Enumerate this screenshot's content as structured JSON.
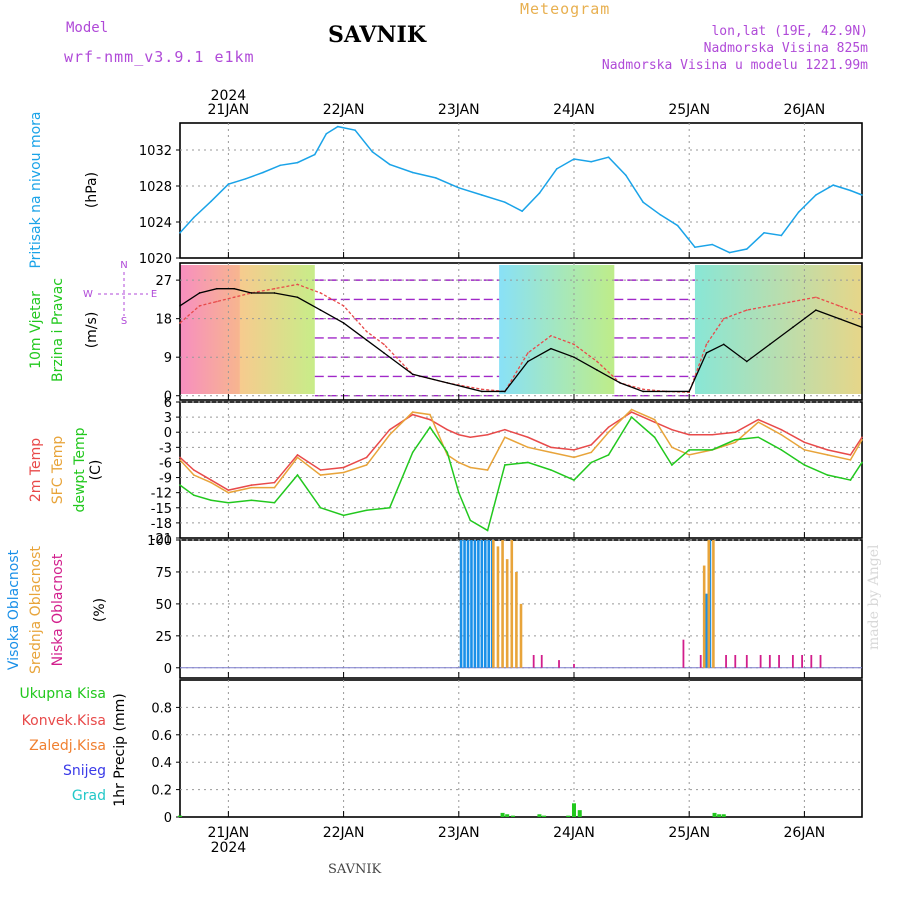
{
  "header": {
    "model_label": "Model",
    "model_name": "wrf-nmm_v3.9.1  e1km",
    "station": "SAVNIK",
    "chart_kind": "Meteogram",
    "coords": "lon,lat (19E, 42.9N)",
    "elevation": "Nadmorska Visina 825m",
    "model_elevation": "Nadmorska Visina u modelu 1221.99m"
  },
  "credit": "made by Angel",
  "footer": "SAVNIK",
  "time_axis": {
    "year": "2024",
    "days": [
      "21JAN",
      "22JAN",
      "23JAN",
      "24JAN",
      "25JAN",
      "26JAN"
    ],
    "start_day": 20.58,
    "end_day": 26.5
  },
  "colors": {
    "pressure": "#1aa3e8",
    "temp2m": "#e84a4a",
    "sfc": "#e8a43a",
    "dew": "#22c81e",
    "wind_label": "#22c81e",
    "high_cloud": "#1a90e8",
    "mid_cloud": "#e8a43a",
    "low_cloud": "#d21e8c",
    "precip_total": "#22c81e",
    "precip_conv": "#e84a4a",
    "precip_frozen": "#f08030",
    "snow": "#3a3ae8",
    "graupel": "#22c8c8",
    "vane_label": "#b04ad8"
  },
  "chart_data": [
    {
      "type": "line",
      "name": "pressure",
      "ylabels": [
        "Pritisak na nivou mora",
        "(hPa)"
      ],
      "ylim": [
        1020,
        1035
      ],
      "yticks": [
        1020,
        1024,
        1028,
        1032
      ],
      "grid": true,
      "x": [
        20.58,
        20.7,
        20.85,
        21.0,
        21.15,
        21.3,
        21.45,
        21.6,
        21.75,
        21.85,
        21.95,
        22.1,
        22.25,
        22.4,
        22.6,
        22.8,
        23.0,
        23.2,
        23.4,
        23.55,
        23.7,
        23.85,
        24.0,
        24.15,
        24.3,
        24.45,
        24.6,
        24.75,
        24.9,
        25.05,
        25.2,
        25.35,
        25.5,
        25.65,
        25.8,
        25.95,
        26.1,
        26.25,
        26.4,
        26.5
      ],
      "series": [
        {
          "values": [
            1022.8,
            1024.5,
            1026.3,
            1028.2,
            1028.8,
            1029.5,
            1030.3,
            1030.6,
            1031.5,
            1033.8,
            1034.6,
            1034.2,
            1031.8,
            1030.4,
            1029.5,
            1028.9,
            1027.8,
            1027.0,
            1026.2,
            1025.2,
            1027.2,
            1029.9,
            1031.0,
            1030.7,
            1031.2,
            1029.2,
            1026.2,
            1024.8,
            1023.6,
            1021.2,
            1021.5,
            1020.6,
            1021.0,
            1022.8,
            1022.5,
            1025.1,
            1027.0,
            1028.1,
            1027.5,
            1027.0
          ]
        }
      ]
    },
    {
      "type": "line",
      "name": "wind",
      "ylabels": [
        "10m Vjetar",
        "Brzina i Pravac",
        "(m/s)"
      ],
      "ylim": [
        -1,
        31
      ],
      "yticks": [
        0,
        9,
        18,
        27
      ],
      "grid": true,
      "vane": [
        "N",
        "E",
        "W",
        "S"
      ],
      "x": [
        20.58,
        20.75,
        20.9,
        21.05,
        21.2,
        21.4,
        21.6,
        21.8,
        22.0,
        22.2,
        22.35,
        22.6,
        22.9,
        23.2,
        23.4,
        23.6,
        23.8,
        24.0,
        24.2,
        24.4,
        24.6,
        24.8,
        25.0,
        25.15,
        25.3,
        25.5,
        25.7,
        25.9,
        26.1,
        26.3,
        26.5
      ],
      "series": [
        {
          "values": [
            17,
            21,
            22,
            23,
            24,
            25,
            26,
            24,
            21,
            15,
            12,
            5,
            3,
            1.5,
            1.0,
            10,
            14,
            12,
            8,
            3,
            1.5,
            1.0,
            0.8,
            12,
            18,
            20,
            21,
            22,
            23,
            21,
            19
          ]
        },
        {
          "values": [
            21,
            24,
            25,
            25,
            24,
            24,
            23,
            20,
            17,
            13,
            10,
            5,
            3,
            1,
            1,
            8,
            11,
            9,
            6,
            3,
            1,
            1,
            1,
            10,
            12,
            8,
            12,
            16,
            20,
            18,
            16
          ]
        }
      ],
      "wind_bands": [
        [
          20.58,
          21.1
        ],
        [
          21.1,
          21.75
        ],
        [
          23.35,
          24.35
        ],
        [
          25.05,
          26.5
        ]
      ]
    },
    {
      "type": "line",
      "name": "temperature",
      "ylabels": [
        "2m Temp",
        "SFC Temp",
        "dewpt Temp",
        "(C)"
      ],
      "ylim": [
        -21,
        6
      ],
      "yticks": [
        -21,
        -18,
        -15,
        -12,
        -9,
        -6,
        -3,
        0,
        3,
        6
      ],
      "grid": true,
      "x": [
        20.58,
        20.7,
        20.85,
        21.0,
        21.2,
        21.4,
        21.6,
        21.8,
        22.0,
        22.2,
        22.4,
        22.6,
        22.75,
        22.9,
        23.0,
        23.1,
        23.25,
        23.4,
        23.6,
        23.8,
        24.0,
        24.15,
        24.3,
        24.5,
        24.7,
        24.85,
        25.0,
        25.2,
        25.4,
        25.6,
        25.8,
        26.0,
        26.2,
        26.4,
        26.5
      ],
      "series": [
        {
          "values": [
            -5.0,
            -7.5,
            -9.5,
            -11.5,
            -10.5,
            -10.0,
            -4.5,
            -7.5,
            -7.0,
            -5.0,
            0.5,
            3.5,
            2.5,
            0.5,
            -0.5,
            -1.0,
            -0.5,
            0.5,
            -1.0,
            -3.0,
            -3.5,
            -2.5,
            1.0,
            4.0,
            2.0,
            0.5,
            -0.5,
            -0.5,
            0.0,
            2.5,
            0.5,
            -2.0,
            -3.5,
            -4.5,
            -1.0
          ]
        },
        {
          "values": [
            -5.5,
            -8.5,
            -10.0,
            -12.0,
            -11.0,
            -11.0,
            -5.0,
            -8.5,
            -8.0,
            -6.5,
            -0.5,
            4.0,
            3.5,
            -4.5,
            -6.0,
            -7.0,
            -7.5,
            -1.0,
            -3.0,
            -4.0,
            -5.0,
            -4.0,
            0.0,
            4.5,
            2.5,
            -3.0,
            -4.5,
            -3.5,
            -2.0,
            2.0,
            -0.5,
            -3.5,
            -4.5,
            -5.5,
            -1.5
          ]
        },
        {
          "values": [
            -10.5,
            -12.5,
            -13.5,
            -14.0,
            -13.5,
            -14.0,
            -8.5,
            -15.0,
            -16.5,
            -15.5,
            -15.0,
            -4.0,
            1.0,
            -4.0,
            -12.0,
            -17.5,
            -19.5,
            -6.5,
            -6.0,
            -7.5,
            -9.5,
            -6.0,
            -4.5,
            3.0,
            -1.0,
            -6.5,
            -3.5,
            -3.5,
            -1.5,
            -1.0,
            -3.5,
            -6.5,
            -8.5,
            -9.5,
            -6.0
          ]
        }
      ]
    },
    {
      "type": "bar",
      "name": "cloud",
      "ylabels": [
        "Visoka Oblacnost",
        "Srednja Oblacnost",
        "Niska Oblacnost",
        "(%)"
      ],
      "ylim": [
        -8,
        100
      ],
      "yticks": [
        0,
        25,
        50,
        75,
        100
      ],
      "grid": true,
      "series": [
        {
          "name": "Visoka Oblacnost",
          "x": [
            23.02,
            23.05,
            23.08,
            23.11,
            23.14,
            23.17,
            23.2,
            23.23,
            23.26,
            23.29,
            25.15,
            25.18
          ],
          "values": [
            100,
            100,
            100,
            100,
            100,
            100,
            100,
            100,
            100,
            100,
            58,
            100
          ]
        },
        {
          "name": "Srednja Oblacnost",
          "x": [
            23.3,
            23.34,
            23.38,
            23.42,
            23.46,
            23.5,
            23.54,
            25.13,
            25.17,
            25.21
          ],
          "values": [
            100,
            95,
            100,
            85,
            100,
            75,
            50,
            80,
            100,
            100
          ]
        },
        {
          "name": "Niska Oblacnost",
          "x": [
            23.65,
            23.72,
            23.87,
            24.0,
            24.95,
            25.1,
            25.32,
            25.4,
            25.5,
            25.62,
            25.7,
            25.78,
            25.9,
            25.98,
            26.06,
            26.14
          ],
          "values": [
            10,
            10,
            6,
            3,
            22,
            10,
            10,
            10,
            10,
            10,
            10,
            10,
            10,
            10,
            10,
            10
          ]
        }
      ]
    },
    {
      "type": "bar",
      "name": "precip",
      "ylabels": [
        "1hr Precip (mm)"
      ],
      "legend": [
        "Ukupna Kisa",
        "Konvek.Kisa",
        "Zaledj.Kisa",
        "Snijeg",
        "Grad"
      ],
      "ylim": [
        0,
        1.0
      ],
      "yticks": [
        0,
        0.2,
        0.4,
        0.6,
        0.8
      ],
      "grid": true,
      "series": [
        {
          "name": "Ukupna Kisa",
          "x": [
            20.58,
            23.38,
            23.42,
            23.47,
            23.7,
            23.74,
            23.95,
            24.0,
            24.05,
            25.22,
            25.26,
            25.3
          ],
          "values": [
            0.01,
            0.03,
            0.02,
            0.01,
            0.02,
            0.01,
            0.01,
            0.1,
            0.05,
            0.03,
            0.02,
            0.02
          ]
        }
      ]
    }
  ]
}
